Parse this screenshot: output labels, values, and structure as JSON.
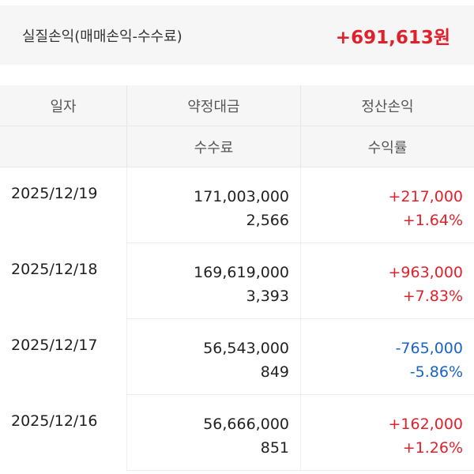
{
  "summary": {
    "label": "실질손익(매매손익-수수료)",
    "value": "+691,613원"
  },
  "headers": {
    "row1": [
      "일자",
      "약정대금",
      "정산손익"
    ],
    "row2": [
      "",
      "수수료",
      "수익률"
    ]
  },
  "rows": [
    {
      "date": "2025/12/19",
      "amount": "171,003,000",
      "fee": "2,566",
      "pnl": "+217,000",
      "rate": "+1.64%",
      "sign": "pos"
    },
    {
      "date": "2025/12/18",
      "amount": "169,619,000",
      "fee": "3,393",
      "pnl": "+963,000",
      "rate": "+7.83%",
      "sign": "pos"
    },
    {
      "date": "2025/12/17",
      "amount": "56,543,000",
      "fee": "849",
      "pnl": "-765,000",
      "rate": "-5.86%",
      "sign": "neg"
    },
    {
      "date": "2025/12/16",
      "amount": "56,666,000",
      "fee": "851",
      "pnl": "+162,000",
      "rate": "+1.26%",
      "sign": "pos"
    }
  ],
  "colors": {
    "positive": "#e0212b",
    "negative": "#1a63c8"
  }
}
